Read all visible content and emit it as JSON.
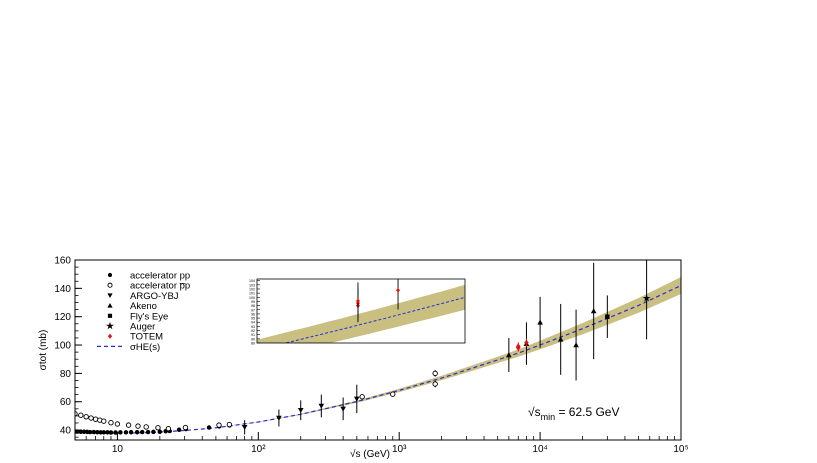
{
  "chart_data": {
    "type": "scatter",
    "xscale": "log",
    "xlim": [
      5,
      100000
    ],
    "ylim": [
      33,
      160
    ],
    "xlabel": "√s (GeV)",
    "ylabel": "σtot (mb)",
    "x_ticks": [
      {
        "v": 10,
        "label": "10"
      },
      {
        "v": 100,
        "label": "10²"
      },
      {
        "v": 1000,
        "label": "10³"
      },
      {
        "v": 10000,
        "label": "10⁴"
      },
      {
        "v": 100000,
        "label": "10⁵"
      }
    ],
    "y_ticks": [
      40,
      60,
      80,
      100,
      120,
      140,
      160
    ],
    "annotation": "√s_min = 62.5 GeV",
    "annotation_parts": {
      "main": "√s",
      "sub": "min",
      "rest": " = 62.5 GeV"
    },
    "legend": [
      {
        "label": "accelerator pp",
        "marker": "filled-circle"
      },
      {
        "label": "accelerator p̅p",
        "marker": "open-circle"
      },
      {
        "label": "ARGO-YBJ",
        "marker": "down-triangle"
      },
      {
        "label": "Akeno",
        "marker": "up-triangle"
      },
      {
        "label": "Fly's Eye",
        "marker": "square"
      },
      {
        "label": "Auger",
        "marker": "star"
      },
      {
        "label": "TOTEM",
        "marker": "red-diamond"
      },
      {
        "label": "σHE(s)",
        "marker": "dashed-line"
      }
    ],
    "colors": {
      "curve": "#2b2bd6",
      "band": "#c9bf80",
      "totem": "#e01010",
      "frame": "#000000"
    },
    "fit_curve": {
      "x": [
        5,
        6,
        8,
        10,
        15,
        20,
        30,
        50,
        100,
        200,
        500,
        1000,
        2000,
        5000,
        7000,
        10000,
        20000,
        50000,
        100000
      ],
      "y": [
        38.5,
        38.2,
        37.9,
        37.8,
        38.1,
        38.6,
        39.7,
        41.6,
        45.7,
        51.1,
        60.1,
        68.0,
        76.7,
        89.5,
        94.3,
        100.0,
        111.5,
        128.0,
        142.0
      ],
      "band_halfwidth": [
        0,
        0,
        0,
        0,
        0,
        0,
        0,
        0.1,
        0.2,
        0.4,
        0.8,
        1.2,
        1.6,
        2.2,
        2.6,
        3.0,
        4.0,
        5.2,
        6.0
      ]
    },
    "series": [
      {
        "name": "accelerator pp",
        "x": [
          5.0,
          5.2,
          5.5,
          5.8,
          6.1,
          6.4,
          6.8,
          7.2,
          7.6,
          8.0,
          8.5,
          9.0,
          9.7,
          10.5,
          11.5,
          12.5,
          13.8,
          15.0,
          16.5,
          18.0,
          20.0,
          22.0,
          23.5,
          27.4,
          30.6,
          44.7,
          52.8,
          62.5
        ],
        "y": [
          39.0,
          38.9,
          38.8,
          38.8,
          38.7,
          38.6,
          38.6,
          38.5,
          38.4,
          38.4,
          38.4,
          38.3,
          38.3,
          38.4,
          38.4,
          38.5,
          38.5,
          38.6,
          38.6,
          38.7,
          38.8,
          39.2,
          39.3,
          40.2,
          40.7,
          41.8,
          42.6,
          43.3
        ]
      },
      {
        "name": "accelerator p̅p",
        "x": [
          5.0,
          5.5,
          6.0,
          6.5,
          7.0,
          7.5,
          8.0,
          9.0,
          10.0,
          12.0,
          14.0,
          16.0,
          19.4,
          23.0,
          30.4,
          52.6,
          62.3,
          546,
          900,
          1800,
          1800
        ],
        "y": [
          51.5,
          50.5,
          49.4,
          48.5,
          47.7,
          47.0,
          46.3,
          45.2,
          44.3,
          43.5,
          42.8,
          42.2,
          41.6,
          41.0,
          41.8,
          43.5,
          43.9,
          63.5,
          65.3,
          72.5,
          80.0
        ],
        "err": [
          0.6,
          0.6,
          0.5,
          0.5,
          0.5,
          0.5,
          0.5,
          0.4,
          0.4,
          0.4,
          0.4,
          0.4,
          0.4,
          0.4,
          0.4,
          0.8,
          0.8,
          1.5,
          0.8,
          2.3,
          2.3
        ]
      },
      {
        "name": "ARGO-YBJ",
        "x": [
          80,
          140,
          200,
          280,
          400,
          500
        ],
        "y": [
          42.0,
          48.5,
          54.0,
          57.0,
          55.0,
          62.0
        ],
        "err": [
          5.0,
          6.0,
          7.0,
          8.0,
          8.0,
          10.0
        ]
      },
      {
        "name": "Akeno",
        "x": [
          6000,
          8000,
          10000,
          14000,
          18000,
          24000
        ],
        "y": [
          93.0,
          101.0,
          116.0,
          104.0,
          100.0,
          124.0
        ],
        "err": [
          12.0,
          15.0,
          18.0,
          25.0,
          25.0,
          34.0
        ]
      },
      {
        "name": "Fly's Eye",
        "x": [
          30000
        ],
        "y": [
          120.0
        ],
        "err": [
          15.0
        ]
      },
      {
        "name": "Auger",
        "x": [
          57000
        ],
        "y": [
          133.0
        ],
        "err": [
          29.0
        ]
      },
      {
        "name": "TOTEM",
        "x": [
          7000,
          7000,
          7000,
          8000
        ],
        "y": [
          98.0,
          98.6,
          99.1,
          101.7
        ],
        "err": [
          2.5,
          2.2,
          2.8,
          2.9
        ]
      }
    ],
    "inset": {
      "ylim": [
        89.0,
        104.4
      ],
      "xlim": [
        5000,
        10000
      ],
      "y_ticks": [
        "89",
        "90",
        "91",
        "92",
        "93",
        "94",
        "95",
        "96",
        "97",
        "98",
        "99",
        "100",
        "101",
        "102",
        "103",
        "104"
      ]
    }
  }
}
